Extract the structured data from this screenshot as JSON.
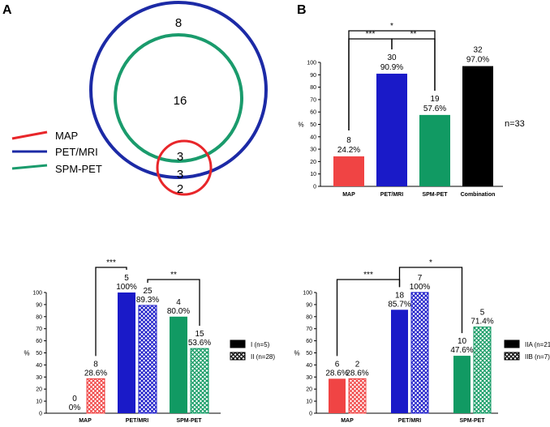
{
  "panels": {
    "a_label": "A",
    "b_label": "B"
  },
  "venn": {
    "counts": [
      "8",
      "16",
      "3",
      "3",
      "2"
    ],
    "legend": [
      {
        "name": "MAP",
        "color": "#e8262a"
      },
      {
        "name": "PET/MRI",
        "color": "#1c2aa6"
      },
      {
        "name": "SPM-PET",
        "color": "#1a9b6c"
      }
    ]
  },
  "colors": {
    "MAP": "#f04444",
    "PET/MRI": "#1a1ac8",
    "SPM-PET": "#119a63",
    "Combination": "#000000",
    "axis": "#000000"
  },
  "chart_data": [
    {
      "id": "B",
      "type": "bar",
      "categories": [
        "MAP",
        "PET/MRI",
        "SPM-PET",
        "Combination"
      ],
      "values": [
        24.2,
        90.9,
        57.6,
        97.0
      ],
      "counts": [
        "8",
        "30",
        "19",
        "32"
      ],
      "percent_labels": [
        "24.2%",
        "90.9%",
        "57.6%",
        "97.0%"
      ],
      "ylabel": "%",
      "ylim": [
        0,
        100
      ],
      "yticks": [
        "0",
        "10",
        "20",
        "30",
        "40",
        "50",
        "60",
        "70",
        "80",
        "90",
        "100"
      ],
      "annotation": "n=33",
      "significance": [
        {
          "from": 0,
          "to": 2,
          "label": "*"
        },
        {
          "from": 0,
          "to": 1,
          "label": "***"
        },
        {
          "from": 1,
          "to": 2,
          "label": "**"
        }
      ]
    },
    {
      "id": "C",
      "type": "bar",
      "categories": [
        "MAP",
        "PET/MRI",
        "SPM-PET"
      ],
      "series": [
        {
          "name": "I (n=5)",
          "values": [
            0,
            100,
            80.0
          ],
          "counts": [
            "0",
            "5",
            "4"
          ],
          "percent_labels": [
            "0%",
            "100%",
            "80.0%"
          ]
        },
        {
          "name": "II (n=28)",
          "values": [
            28.6,
            89.3,
            53.6
          ],
          "counts": [
            "8",
            "25",
            "15"
          ],
          "percent_labels": [
            "28.6%",
            "89.3%",
            "53.6%"
          ]
        }
      ],
      "ylabel": "%",
      "ylim": [
        0,
        100
      ],
      "yticks": [
        "0",
        "10",
        "20",
        "30",
        "40",
        "50",
        "60",
        "70",
        "80",
        "90",
        "100"
      ],
      "significance": [
        {
          "from_cat": 0,
          "from_series": 1,
          "to_cat": 1,
          "to_series": 0,
          "label": "***"
        },
        {
          "from_cat": 1,
          "from_series": 1,
          "to_cat": 2,
          "to_series": 1,
          "label": "**"
        }
      ]
    },
    {
      "id": "D",
      "type": "bar",
      "categories": [
        "MAP",
        "PET/MRI",
        "SPM-PET"
      ],
      "series": [
        {
          "name": "IIA (n=21)",
          "values": [
            28.6,
            85.7,
            47.6
          ],
          "counts": [
            "6",
            "18",
            "10"
          ],
          "percent_labels": [
            "28.6%",
            "85.7%",
            "47.6%"
          ]
        },
        {
          "name": "IIB (n=7)",
          "values": [
            28.6,
            100,
            71.4
          ],
          "counts": [
            "2",
            "7",
            "5"
          ],
          "percent_labels": [
            "28.6%",
            "100%",
            "71.4%"
          ]
        }
      ],
      "ylabel": "%",
      "ylim": [
        0,
        100
      ],
      "yticks": [
        "0",
        "10",
        "20",
        "30",
        "40",
        "50",
        "60",
        "70",
        "80",
        "90",
        "100"
      ],
      "significance": [
        {
          "from_cat": 0,
          "from_series": 0,
          "to_cat": 1,
          "to_series": 0,
          "label": "***"
        },
        {
          "from_cat": 1,
          "from_series": 0,
          "to_cat": 2,
          "to_series": 0,
          "label": "*"
        }
      ]
    }
  ]
}
